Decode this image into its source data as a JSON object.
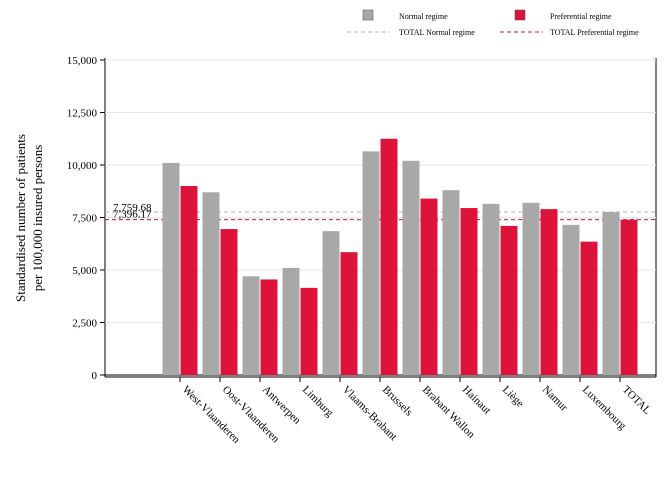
{
  "chart_data": {
    "type": "bar",
    "ylabel_line1": "Standardised number of patients",
    "ylabel_line2": "per 100,000 insured persons",
    "ylim": [
      0,
      15000
    ],
    "yticks": [
      0,
      2500,
      5000,
      7500,
      10000,
      12500,
      15000
    ],
    "ytick_labels": [
      "0",
      "2,500",
      "5,000",
      "7,500",
      "10,000",
      "12,500",
      "15,000"
    ],
    "categories": [
      "West-Vlaanderen",
      "Oost-Vlaanderen",
      "Antwerpen",
      "Limburg",
      "Vlaams-Brabant",
      "Brussels",
      "Brabant Wallon",
      "Hainaut",
      "Liège",
      "Namur",
      "Luxembourg",
      "TOTAL"
    ],
    "series": [
      {
        "name": "Normal regime",
        "color": "#a8a8a8",
        "values": [
          10100,
          8700,
          4700,
          5100,
          6850,
          10650,
          10200,
          8800,
          8150,
          8200,
          7150,
          7760
        ]
      },
      {
        "name": "Preferential regime",
        "color": "#dc143c",
        "values": [
          9000,
          6950,
          4550,
          4150,
          5850,
          11250,
          8400,
          7950,
          7100,
          7900,
          6350,
          7396
        ]
      }
    ],
    "reference_lines": [
      {
        "name": "TOTAL Normal regime",
        "value": 7759.68,
        "label": "7,759.68",
        "color": "#b0b0b0"
      },
      {
        "name": "TOTAL Preferential regime",
        "value": 7396.17,
        "label": "7,396.17",
        "color": "#c8102e"
      }
    ],
    "legend_position": "top",
    "grid": true
  }
}
